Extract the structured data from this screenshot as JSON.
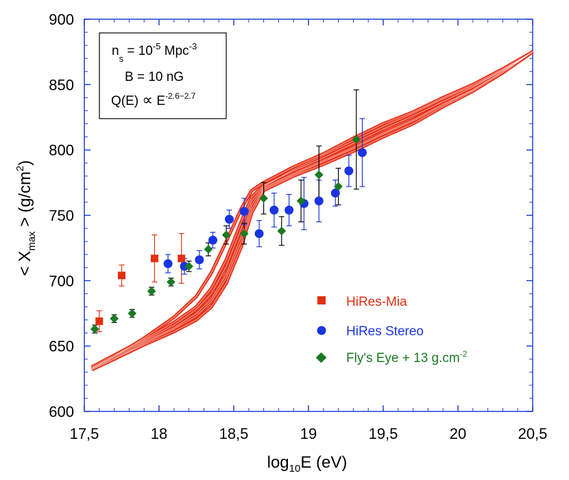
{
  "chart_data": {
    "type": "scatter",
    "xlabel": {
      "pre": "log",
      "sub": "10",
      "post": "E (eV)"
    },
    "ylabel": {
      "pre": "< X",
      "sub": "max",
      "mid": " > (g/cm",
      "sup": "2",
      "post": ")"
    },
    "xlim": [
      17.5,
      20.5
    ],
    "ylim": [
      600,
      900
    ],
    "x_ticks": [
      17.5,
      18,
      18.5,
      19,
      19.5,
      20,
      20.5
    ],
    "x_tick_labels": [
      "17,5",
      "18",
      "18,5",
      "19",
      "19,5",
      "20",
      "20,5"
    ],
    "y_ticks": [
      600,
      650,
      700,
      750,
      800,
      850,
      900
    ],
    "y_tick_labels": [
      "600",
      "650",
      "700",
      "750",
      "800",
      "850",
      "900"
    ],
    "frame_color": "#1f3fd0",
    "info_box": {
      "line1": {
        "base": "n",
        "sub": "s",
        "mid": " = 10",
        "sup": "-5",
        "post": " Mpc",
        "sup2": "-3"
      },
      "line2": "B = 10 nG",
      "line3": {
        "base": "Q(E) ",
        "symbol": "∝",
        "mid": " E",
        "sup": "-2.6−2.7"
      }
    },
    "legend_position": "lower-right",
    "series": [
      {
        "name": "HiRes-Mia",
        "marker": "square",
        "color": "#e03010",
        "points": [
          {
            "x": 17.6,
            "y": 669,
            "err": 8
          },
          {
            "x": 17.75,
            "y": 704,
            "err": 8
          },
          {
            "x": 17.97,
            "y": 717,
            "err": 18
          },
          {
            "x": 18.15,
            "y": 717,
            "err": 19
          }
        ]
      },
      {
        "name": "HiRes Stereo",
        "marker": "circle",
        "color": "#1a35e0",
        "points": [
          {
            "x": 18.06,
            "y": 713,
            "err": 7
          },
          {
            "x": 18.17,
            "y": 711,
            "err": 6
          },
          {
            "x": 18.27,
            "y": 716,
            "err": 7
          },
          {
            "x": 18.36,
            "y": 731,
            "err": 6
          },
          {
            "x": 18.47,
            "y": 747,
            "err": 7
          },
          {
            "x": 18.57,
            "y": 753,
            "err": 10
          },
          {
            "x": 18.67,
            "y": 736,
            "err": 10
          },
          {
            "x": 18.77,
            "y": 754,
            "err": 13
          },
          {
            "x": 18.87,
            "y": 754,
            "err": 12
          },
          {
            "x": 18.97,
            "y": 759,
            "err": 20
          },
          {
            "x": 19.07,
            "y": 761,
            "err": 16
          },
          {
            "x": 19.18,
            "y": 767,
            "err": 10
          },
          {
            "x": 19.27,
            "y": 784,
            "err": 12
          },
          {
            "x": 19.36,
            "y": 798,
            "err": 26
          }
        ]
      },
      {
        "name": "Fly's Eye + 13 g.cm",
        "name_sup": "-2",
        "marker": "diamond",
        "color": "#1a7a22",
        "points": [
          {
            "x": 17.57,
            "y": 663,
            "err": 3
          },
          {
            "x": 17.7,
            "y": 671,
            "err": 3
          },
          {
            "x": 17.82,
            "y": 675,
            "err": 3
          },
          {
            "x": 17.95,
            "y": 692,
            "err": 3
          },
          {
            "x": 18.08,
            "y": 699,
            "err": 3
          },
          {
            "x": 18.2,
            "y": 711,
            "err": 4
          },
          {
            "x": 18.33,
            "y": 724,
            "err": 5
          },
          {
            "x": 18.45,
            "y": 735,
            "err": 7
          },
          {
            "x": 18.57,
            "y": 736,
            "err": 8
          },
          {
            "x": 18.7,
            "y": 763,
            "err": 12
          },
          {
            "x": 18.82,
            "y": 738,
            "err": 11
          },
          {
            "x": 18.95,
            "y": 761,
            "err": 16
          },
          {
            "x": 19.07,
            "y": 781,
            "err": 22
          },
          {
            "x": 19.2,
            "y": 772,
            "err": 14
          },
          {
            "x": 19.32,
            "y": 808,
            "err": 38
          }
        ]
      }
    ],
    "model_band": {
      "color": "#e8341c",
      "curves": [
        [
          [
            17.55,
            633
          ],
          [
            17.7,
            642
          ],
          [
            17.9,
            656
          ],
          [
            18.1,
            672
          ],
          [
            18.25,
            688
          ],
          [
            18.35,
            706
          ],
          [
            18.45,
            730
          ],
          [
            18.55,
            755
          ],
          [
            18.62,
            769
          ],
          [
            18.7,
            775
          ],
          [
            18.9,
            787
          ],
          [
            19.1,
            797
          ],
          [
            19.3,
            809
          ],
          [
            19.5,
            820
          ],
          [
            19.7,
            829
          ],
          [
            19.9,
            840
          ],
          [
            20.1,
            850
          ],
          [
            20.3,
            862
          ],
          [
            20.5,
            875
          ]
        ],
        [
          [
            17.55,
            634
          ],
          [
            17.7,
            643
          ],
          [
            17.9,
            655
          ],
          [
            18.1,
            668
          ],
          [
            18.25,
            680
          ],
          [
            18.35,
            694
          ],
          [
            18.45,
            716
          ],
          [
            18.55,
            745
          ],
          [
            18.62,
            764
          ],
          [
            18.7,
            773
          ],
          [
            18.9,
            784
          ],
          [
            19.1,
            794
          ],
          [
            19.3,
            805
          ],
          [
            19.5,
            816
          ],
          [
            19.7,
            826
          ],
          [
            19.9,
            837
          ],
          [
            20.1,
            848
          ],
          [
            20.3,
            861
          ],
          [
            20.5,
            875
          ]
        ],
        [
          [
            17.55,
            633
          ],
          [
            17.7,
            641
          ],
          [
            17.9,
            653
          ],
          [
            18.1,
            664
          ],
          [
            18.25,
            675
          ],
          [
            18.35,
            686
          ],
          [
            18.45,
            705
          ],
          [
            18.55,
            734
          ],
          [
            18.62,
            758
          ],
          [
            18.7,
            771
          ],
          [
            18.9,
            782
          ],
          [
            19.1,
            792
          ],
          [
            19.3,
            802
          ],
          [
            19.5,
            813
          ],
          [
            19.7,
            823
          ],
          [
            19.9,
            835
          ],
          [
            20.1,
            846
          ],
          [
            20.3,
            860
          ],
          [
            20.5,
            875
          ]
        ],
        [
          [
            17.55,
            632
          ],
          [
            17.7,
            640
          ],
          [
            17.9,
            651
          ],
          [
            18.1,
            661
          ],
          [
            18.25,
            670
          ],
          [
            18.35,
            680
          ],
          [
            18.45,
            698
          ],
          [
            18.55,
            726
          ],
          [
            18.62,
            752
          ],
          [
            18.7,
            769
          ],
          [
            18.9,
            780
          ],
          [
            19.1,
            789
          ],
          [
            19.3,
            799
          ],
          [
            19.5,
            810
          ],
          [
            19.7,
            820
          ],
          [
            19.9,
            833
          ],
          [
            20.1,
            845
          ],
          [
            20.3,
            859
          ],
          [
            20.5,
            875
          ]
        ],
        [
          [
            17.55,
            633
          ],
          [
            17.7,
            642
          ],
          [
            17.9,
            654
          ],
          [
            18.1,
            666
          ],
          [
            18.25,
            678
          ],
          [
            18.35,
            690
          ],
          [
            18.45,
            711
          ],
          [
            18.55,
            740
          ],
          [
            18.62,
            761
          ],
          [
            18.7,
            772
          ],
          [
            18.9,
            785
          ],
          [
            19.1,
            796
          ],
          [
            19.3,
            807
          ],
          [
            19.5,
            818
          ],
          [
            19.7,
            828
          ],
          [
            19.9,
            839
          ],
          [
            20.1,
            849
          ],
          [
            20.3,
            861
          ],
          [
            20.5,
            875
          ]
        ],
        [
          [
            17.55,
            632
          ],
          [
            17.7,
            640
          ],
          [
            17.9,
            652
          ],
          [
            18.1,
            663
          ],
          [
            18.25,
            673
          ],
          [
            18.35,
            684
          ],
          [
            18.45,
            702
          ],
          [
            18.55,
            730
          ],
          [
            18.62,
            755
          ],
          [
            18.7,
            770
          ],
          [
            18.9,
            781
          ],
          [
            19.1,
            791
          ],
          [
            19.3,
            801
          ],
          [
            19.5,
            812
          ],
          [
            19.7,
            822
          ],
          [
            19.9,
            834
          ],
          [
            20.1,
            846
          ],
          [
            20.3,
            860
          ],
          [
            20.5,
            875
          ]
        ]
      ]
    }
  }
}
